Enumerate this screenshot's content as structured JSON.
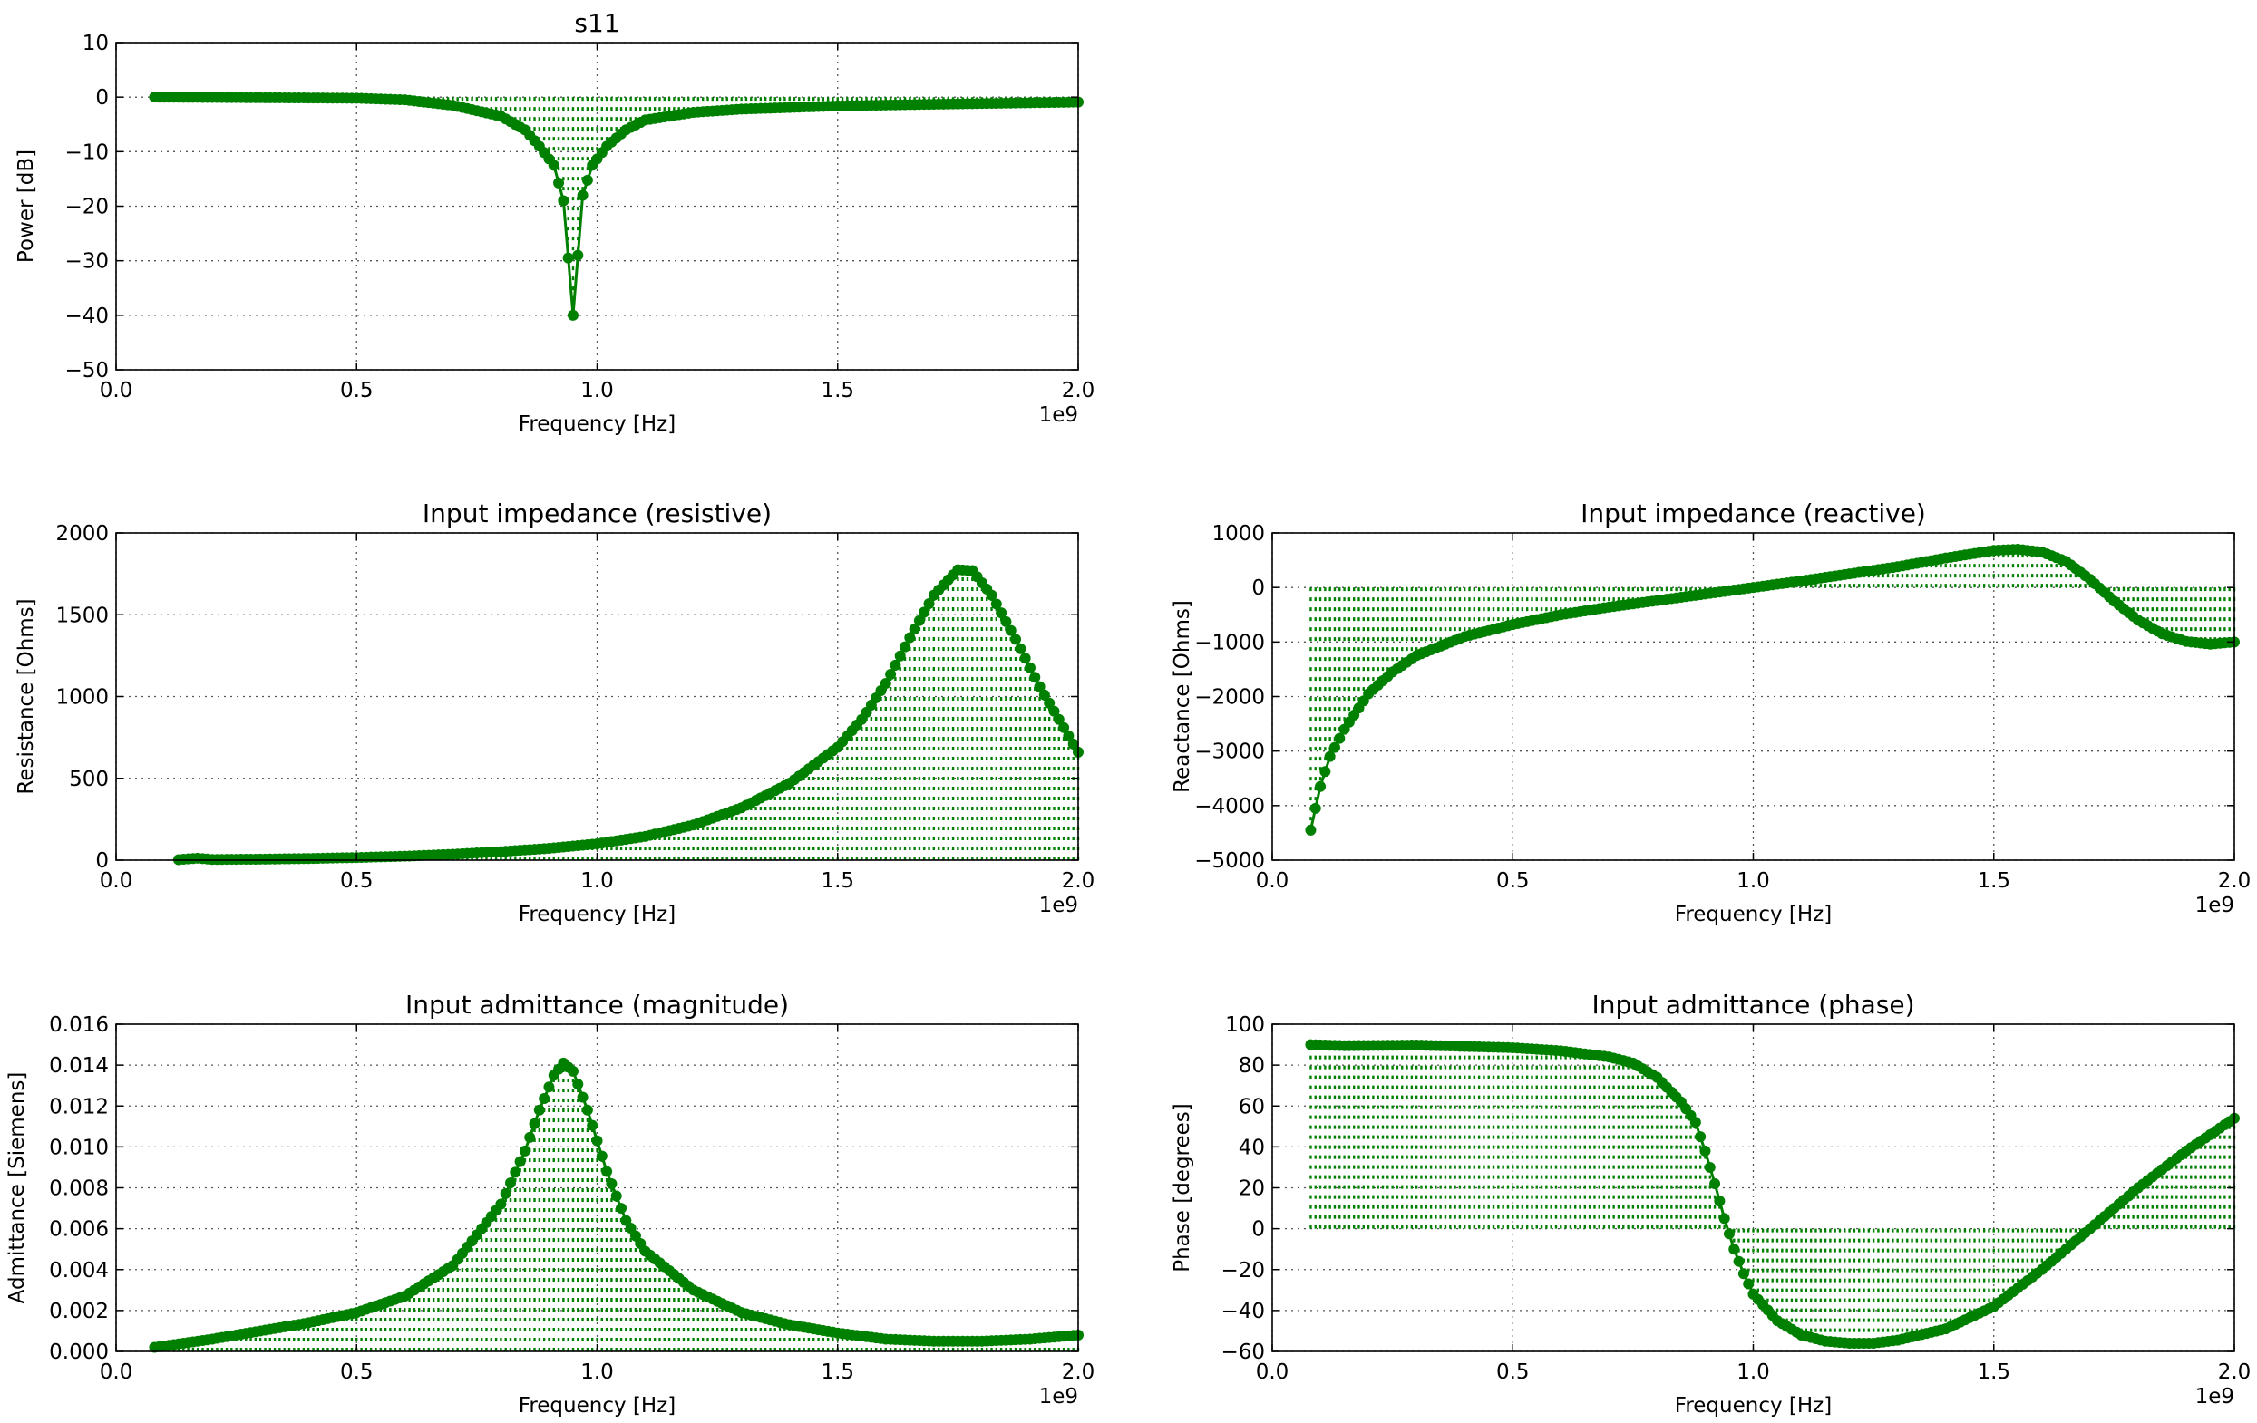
{
  "figure": {
    "colors": {
      "series": "#008000",
      "grid": "#555555"
    }
  },
  "chart_data": [
    {
      "type": "line",
      "title": "s11",
      "xlabel": "Frequency [Hz]",
      "ylabel": "Power [dB]",
      "x_offset_label": "1e9",
      "xlim": [
        0,
        2
      ],
      "ylim": [
        -50,
        10
      ],
      "xticks": [
        0,
        0.5,
        1,
        1.5,
        2
      ],
      "xtick_labels": [
        "0.0",
        "0.5",
        "1.0",
        "1.5",
        "2.0"
      ],
      "yticks": [
        -50,
        -40,
        -30,
        -20,
        -10,
        0,
        10
      ],
      "ytick_labels": [
        "−50",
        "−40",
        "−30",
        "−20",
        "−10",
        "0",
        "10"
      ],
      "grid": true,
      "stems": true,
      "x_start": 0.08,
      "x_end": 2.0,
      "n_points": 193,
      "series": [
        {
          "keypoints": [
            [
              0.08,
              0
            ],
            [
              0.5,
              -0.2
            ],
            [
              0.6,
              -0.5
            ],
            [
              0.7,
              -1.5
            ],
            [
              0.8,
              -3.5
            ],
            [
              0.85,
              -6
            ],
            [
              0.88,
              -9
            ],
            [
              0.91,
              -12.5
            ],
            [
              0.93,
              -19
            ],
            [
              0.95,
              -40
            ],
            [
              0.97,
              -18
            ],
            [
              0.99,
              -12.5
            ],
            [
              1.02,
              -9
            ],
            [
              1.06,
              -6
            ],
            [
              1.1,
              -4.2
            ],
            [
              1.2,
              -2.8
            ],
            [
              1.3,
              -2.2
            ],
            [
              1.5,
              -1.6
            ],
            [
              1.7,
              -1.3
            ],
            [
              2.0,
              -0.9
            ]
          ]
        }
      ]
    },
    {
      "type": "line",
      "title": "Input impedance (resistive)",
      "xlabel": "Frequency [Hz]",
      "ylabel": "Resistance [Ohms]",
      "x_offset_label": "1e9",
      "xlim": [
        0,
        2
      ],
      "ylim": [
        0,
        2000
      ],
      "xticks": [
        0,
        0.5,
        1,
        1.5,
        2
      ],
      "xtick_labels": [
        "0.0",
        "0.5",
        "1.0",
        "1.5",
        "2.0"
      ],
      "yticks": [
        0,
        500,
        1000,
        1500,
        2000
      ],
      "ytick_labels": [
        "0",
        "500",
        "1000",
        "1500",
        "2000"
      ],
      "grid": true,
      "stems": true,
      "x_start": 0.13,
      "x_end": 2.0,
      "n_points": 188,
      "series": [
        {
          "keypoints": [
            [
              0.13,
              3
            ],
            [
              0.17,
              12
            ],
            [
              0.2,
              4
            ],
            [
              0.3,
              6
            ],
            [
              0.4,
              10
            ],
            [
              0.5,
              16
            ],
            [
              0.6,
              24
            ],
            [
              0.7,
              36
            ],
            [
              0.8,
              52
            ],
            [
              0.9,
              72
            ],
            [
              1.0,
              100
            ],
            [
              1.1,
              145
            ],
            [
              1.2,
              215
            ],
            [
              1.3,
              320
            ],
            [
              1.4,
              470
            ],
            [
              1.5,
              690
            ],
            [
              1.55,
              860
            ],
            [
              1.6,
              1080
            ],
            [
              1.65,
              1360
            ],
            [
              1.7,
              1620
            ],
            [
              1.75,
              1775
            ],
            [
              1.78,
              1770
            ],
            [
              1.82,
              1620
            ],
            [
              1.87,
              1350
            ],
            [
              1.92,
              1060
            ],
            [
              1.96,
              860
            ],
            [
              2.0,
              660
            ]
          ]
        }
      ]
    },
    {
      "type": "line",
      "title": "Input impedance (reactive)",
      "xlabel": "Frequency [Hz]",
      "ylabel": "Reactance [Ohms]",
      "x_offset_label": "1e9",
      "xlim": [
        0,
        2
      ],
      "ylim": [
        -5000,
        1000
      ],
      "xticks": [
        0,
        0.5,
        1,
        1.5,
        2
      ],
      "xtick_labels": [
        "0.0",
        "0.5",
        "1.0",
        "1.5",
        "2.0"
      ],
      "yticks": [
        -5000,
        -4000,
        -3000,
        -2000,
        -1000,
        0,
        1000
      ],
      "ytick_labels": [
        "−5000",
        "−4000",
        "−3000",
        "−2000",
        "−1000",
        "0",
        "1000"
      ],
      "grid": true,
      "stems": true,
      "x_start": 0.08,
      "x_end": 2.0,
      "n_points": 193,
      "series": [
        {
          "keypoints": [
            [
              0.08,
              -4450
            ],
            [
              0.1,
              -3650
            ],
            [
              0.12,
              -3100
            ],
            [
              0.15,
              -2600
            ],
            [
              0.2,
              -1950
            ],
            [
              0.25,
              -1550
            ],
            [
              0.3,
              -1250
            ],
            [
              0.4,
              -900
            ],
            [
              0.5,
              -680
            ],
            [
              0.6,
              -500
            ],
            [
              0.7,
              -360
            ],
            [
              0.8,
              -240
            ],
            [
              0.9,
              -120
            ],
            [
              1.0,
              0
            ],
            [
              1.1,
              120
            ],
            [
              1.2,
              250
            ],
            [
              1.3,
              380
            ],
            [
              1.4,
              540
            ],
            [
              1.5,
              680
            ],
            [
              1.55,
              700
            ],
            [
              1.6,
              650
            ],
            [
              1.65,
              480
            ],
            [
              1.7,
              150
            ],
            [
              1.75,
              -250
            ],
            [
              1.8,
              -600
            ],
            [
              1.85,
              -850
            ],
            [
              1.9,
              -990
            ],
            [
              1.95,
              -1040
            ],
            [
              2.0,
              -1000
            ]
          ]
        }
      ]
    },
    {
      "type": "line",
      "title": "Input admittance (magnitude)",
      "xlabel": "Frequency [Hz]",
      "ylabel": "Admittance [Siemens]",
      "x_offset_label": "1e9",
      "xlim": [
        0,
        2
      ],
      "ylim": [
        0,
        0.016
      ],
      "xticks": [
        0,
        0.5,
        1,
        1.5,
        2
      ],
      "xtick_labels": [
        "0.0",
        "0.5",
        "1.0",
        "1.5",
        "2.0"
      ],
      "yticks": [
        0,
        0.002,
        0.004,
        0.006,
        0.008,
        0.01,
        0.012,
        0.014,
        0.016
      ],
      "ytick_labels": [
        "0.000",
        "0.002",
        "0.004",
        "0.006",
        "0.008",
        "0.010",
        "0.012",
        "0.014",
        "0.016"
      ],
      "grid": true,
      "stems": true,
      "x_start": 0.08,
      "x_end": 2.0,
      "n_points": 193,
      "series": [
        {
          "keypoints": [
            [
              0.08,
              0.0002
            ],
            [
              0.2,
              0.0006
            ],
            [
              0.3,
              0.001
            ],
            [
              0.4,
              0.0014
            ],
            [
              0.5,
              0.0019
            ],
            [
              0.6,
              0.0027
            ],
            [
              0.7,
              0.0042
            ],
            [
              0.8,
              0.0072
            ],
            [
              0.85,
              0.0098
            ],
            [
              0.88,
              0.0118
            ],
            [
              0.91,
              0.0135
            ],
            [
              0.93,
              0.0141
            ],
            [
              0.95,
              0.0137
            ],
            [
              0.98,
              0.0118
            ],
            [
              1.02,
              0.0088
            ],
            [
              1.06,
              0.0064
            ],
            [
              1.1,
              0.0049
            ],
            [
              1.2,
              0.003
            ],
            [
              1.3,
              0.0019
            ],
            [
              1.4,
              0.0013
            ],
            [
              1.5,
              0.0009
            ],
            [
              1.6,
              0.0006
            ],
            [
              1.7,
              0.0005
            ],
            [
              1.8,
              0.0005
            ],
            [
              1.9,
              0.0006
            ],
            [
              2.0,
              0.0008
            ]
          ]
        }
      ]
    },
    {
      "type": "line",
      "title": "Input admittance (phase)",
      "xlabel": "Frequency [Hz]",
      "ylabel": "Phase [degrees]",
      "x_offset_label": "1e9",
      "xlim": [
        0,
        2
      ],
      "ylim": [
        -60,
        100
      ],
      "xticks": [
        0,
        0.5,
        1,
        1.5,
        2
      ],
      "xtick_labels": [
        "0.0",
        "0.5",
        "1.0",
        "1.5",
        "2.0"
      ],
      "yticks": [
        -60,
        -40,
        -20,
        0,
        20,
        40,
        60,
        80,
        100
      ],
      "ytick_labels": [
        "−60",
        "−40",
        "−20",
        "0",
        "20",
        "40",
        "60",
        "80",
        "100"
      ],
      "grid": true,
      "stems": true,
      "x_start": 0.08,
      "x_end": 2.0,
      "n_points": 193,
      "series": [
        {
          "keypoints": [
            [
              0.08,
              90
            ],
            [
              0.15,
              89.5
            ],
            [
              0.3,
              89.8
            ],
            [
              0.5,
              88.5
            ],
            [
              0.6,
              87
            ],
            [
              0.7,
              84
            ],
            [
              0.75,
              81
            ],
            [
              0.8,
              74
            ],
            [
              0.85,
              62
            ],
            [
              0.88,
              52
            ],
            [
              0.9,
              38
            ],
            [
              0.92,
              22
            ],
            [
              0.94,
              5
            ],
            [
              0.96,
              -10
            ],
            [
              0.98,
              -22
            ],
            [
              1.0,
              -32
            ],
            [
              1.05,
              -45
            ],
            [
              1.1,
              -52
            ],
            [
              1.15,
              -55
            ],
            [
              1.2,
              -56
            ],
            [
              1.25,
              -56
            ],
            [
              1.3,
              -54.5
            ],
            [
              1.4,
              -49
            ],
            [
              1.5,
              -38
            ],
            [
              1.6,
              -20
            ],
            [
              1.7,
              0
            ],
            [
              1.8,
              20
            ],
            [
              1.9,
              38
            ],
            [
              2.0,
              54
            ]
          ]
        }
      ]
    }
  ]
}
